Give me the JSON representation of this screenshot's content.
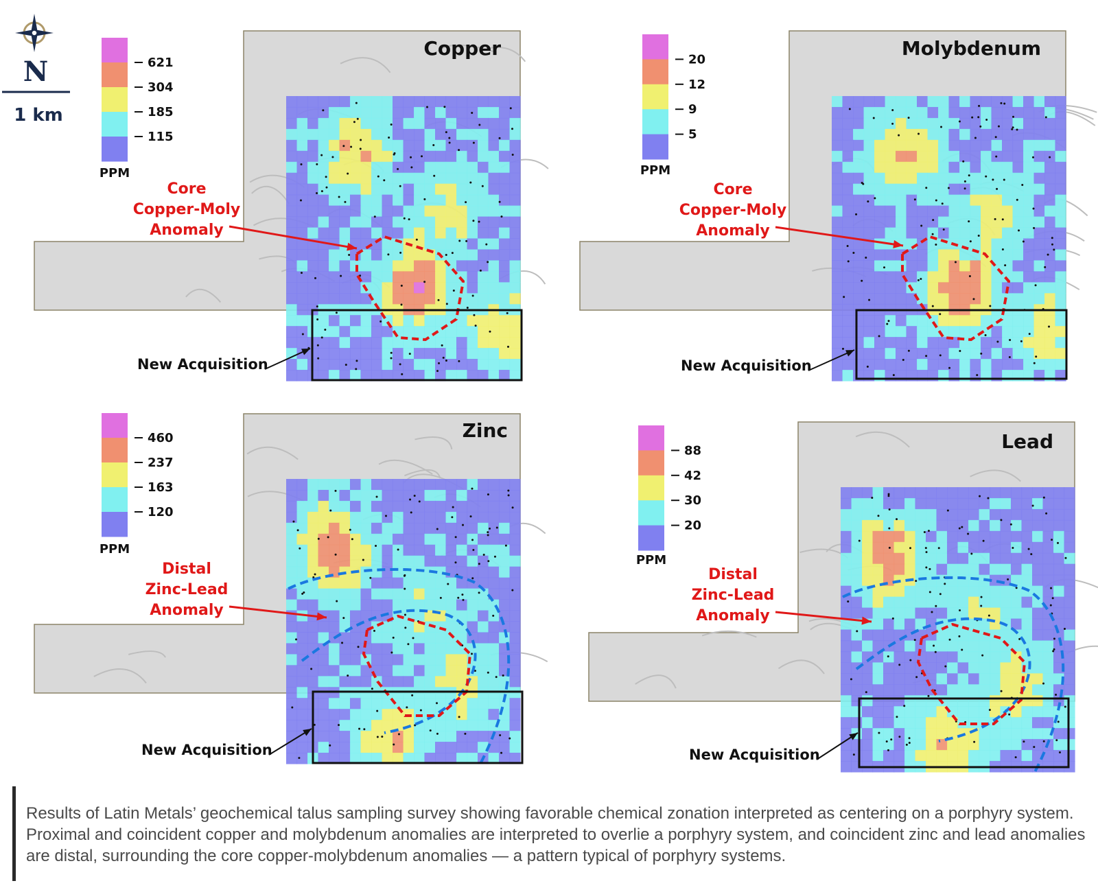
{
  "north_arrow": {
    "letter": "N",
    "scale_label": "1 km",
    "icon": "compass-rose-icon"
  },
  "legend_unit": "PPM",
  "panels": [
    {
      "title": "Copper",
      "legend_values": [
        "621",
        "304",
        "185",
        "115"
      ],
      "annotation": [
        "Core",
        "Copper-Moly",
        "Anomaly"
      ],
      "acquisition_label": "New Acquisition",
      "anomaly_type": "core"
    },
    {
      "title": "Molybdenum",
      "legend_values": [
        "20",
        "12",
        "9",
        "5"
      ],
      "annotation": [
        "Core",
        "Copper-Moly",
        "Anomaly"
      ],
      "acquisition_label": "New Acquisition",
      "anomaly_type": "core"
    },
    {
      "title": "Zinc",
      "legend_values": [
        "460",
        "237",
        "163",
        "120"
      ],
      "annotation": [
        "Distal",
        "Zinc-Lead",
        "Anomaly"
      ],
      "acquisition_label": "New Acquisition",
      "anomaly_type": "distal"
    },
    {
      "title": "Lead",
      "legend_values": [
        "88",
        "42",
        "30",
        "20"
      ],
      "annotation": [
        "Distal",
        "Zinc-Lead",
        "Anomaly"
      ],
      "acquisition_label": "New Acquisition",
      "anomaly_type": "distal"
    }
  ],
  "colors": {
    "magenta": "#e070e0",
    "salmon": "#f09070",
    "yellow": "#f0f070",
    "cyan": "#80f0f0",
    "blue": "#8080f0",
    "relief": "#d9d9d9",
    "red_outline": "#e01818",
    "blue_outline": "#1a78e0",
    "label_red": "#e01818",
    "navy": "#1a2b4c"
  },
  "caption": "Results of Latin Metals’ geochemical talus sampling survey showing favorable chemical zonation interpreted as centering on a porphyry system. Proximal and coincident copper and molybdenum anomalies are interpreted to overlie a porphyry system, and coincident zinc and lead anomalies are distal, surrounding the core copper-molybdenum anomalies — a pattern typical of porphyry systems."
}
